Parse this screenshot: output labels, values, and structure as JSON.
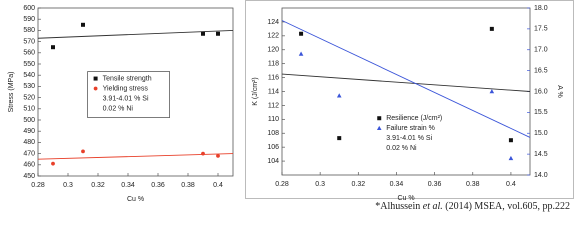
{
  "chart_data": [
    {
      "type": "scatter",
      "x": [
        0.29,
        0.31,
        0.39,
        0.4
      ],
      "xlabel": "Cu %",
      "ylabel": "Stress (MPa)",
      "xlim": [
        0.28,
        0.41
      ],
      "xticks": [
        0.28,
        0.3,
        0.32,
        0.34,
        0.36,
        0.38,
        0.4
      ],
      "ylim": [
        450,
        600
      ],
      "yticks": [
        450,
        460,
        470,
        480,
        490,
        500,
        510,
        520,
        530,
        540,
        550,
        560,
        570,
        580,
        590,
        600
      ],
      "series": [
        {
          "name": "Tensile strength",
          "color": "#111111",
          "marker": "square",
          "values": [
            565,
            585,
            577,
            577
          ]
        },
        {
          "name": "Yielding stress",
          "color": "#e8402a",
          "marker": "circle",
          "values": [
            461,
            472,
            470,
            468
          ]
        }
      ],
      "trendlines": [
        {
          "color": "#333333",
          "x": [
            0.28,
            0.41
          ],
          "values": [
            573,
            580
          ]
        },
        {
          "color": "#e8402a",
          "x": [
            0.28,
            0.41
          ],
          "values": [
            465,
            470
          ]
        }
      ],
      "legend": "center",
      "legend_frame": true,
      "annotations": [
        "3.91-4.01 % Si",
        "0.02 % Ni"
      ]
    },
    {
      "type": "scatter",
      "x": [
        0.29,
        0.31,
        0.39,
        0.4
      ],
      "xlabel": "Cu %",
      "ylabel": "K (J/cm²)",
      "y2label": "A %",
      "y2color": "#3b55d9",
      "xlim": [
        0.28,
        0.41
      ],
      "xticks": [
        0.28,
        0.3,
        0.32,
        0.34,
        0.36,
        0.38,
        0.4
      ],
      "ylim": [
        102,
        126
      ],
      "yticks": [
        104,
        106,
        108,
        110,
        112,
        114,
        116,
        118,
        120,
        122,
        124
      ],
      "y2lim": [
        14.0,
        18.0
      ],
      "y2ticks": [
        {
          "value": 14,
          "label": "14.0"
        },
        14.5,
        {
          "value": 15,
          "label": "15.0"
        },
        15.5,
        {
          "value": 16,
          "label": "16.0"
        },
        16.5,
        {
          "value": 17,
          "label": "17.0"
        },
        17.5,
        {
          "value": 18,
          "label": "18.0"
        }
      ],
      "series": [
        {
          "name": "Resilience (J/cm²)",
          "color": "#111111",
          "marker": "square",
          "values": [
            122.3,
            107.3,
            123,
            107
          ]
        },
        {
          "name": "Failure strain %",
          "color": "#3b55d9",
          "marker": "triangle",
          "axis": "y2",
          "values": [
            16.9,
            15.9,
            16.0,
            14.4
          ]
        }
      ],
      "trendlines": [
        {
          "color": "#333333",
          "x": [
            0.28,
            0.41
          ],
          "values": [
            116.5,
            114
          ]
        },
        {
          "color": "#3b55d9",
          "axis": "y2",
          "x": [
            0.28,
            0.41
          ],
          "values": [
            17.7,
            14.9
          ]
        }
      ],
      "legend": "lower center",
      "legend_frame": false,
      "annotations": [
        "3.91-4.01 % Si",
        "0.02 % Ni"
      ]
    }
  ],
  "citation": {
    "author": "*Alhussein",
    "etal": "et al.",
    "rest": "(2014) MSEA, vol.605, pp.222"
  }
}
